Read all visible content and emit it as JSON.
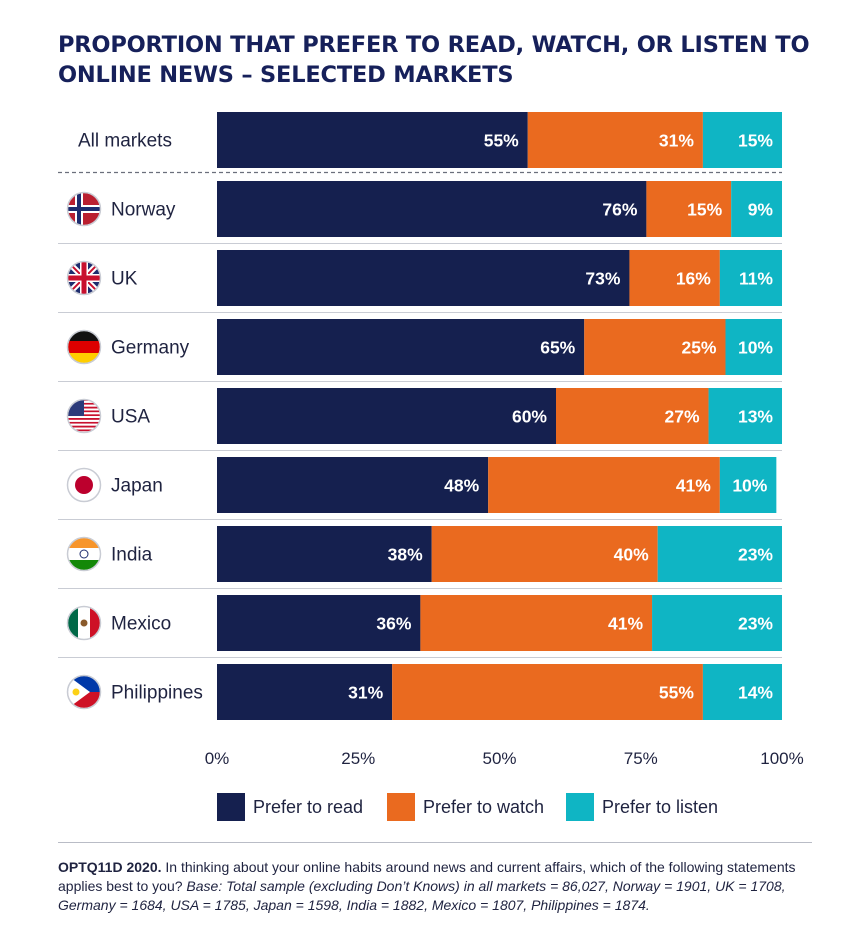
{
  "title": "PROPORTION THAT PREFER TO READ, WATCH, OR LISTEN TO ONLINE NEWS – SELECTED MARKETS",
  "colors": {
    "read": "#15204f",
    "watch": "#ea6a1f",
    "listen": "#0fb5c4",
    "text": "#1f2340"
  },
  "chart_data": {
    "type": "bar",
    "orientation": "horizontal",
    "stacked": true,
    "categories": [
      "All markets",
      "Norway",
      "UK",
      "Germany",
      "USA",
      "Japan",
      "India",
      "Mexico",
      "Philippines"
    ],
    "series": [
      {
        "name": "Prefer to read",
        "values": [
          55,
          76,
          73,
          65,
          60,
          48,
          38,
          36,
          31
        ],
        "labels": [
          "55%",
          "76%",
          "73%",
          "65%",
          "60%",
          "48%",
          "38%",
          "36%",
          "31%"
        ]
      },
      {
        "name": "Prefer to watch",
        "values": [
          31,
          15,
          16,
          25,
          27,
          41,
          40,
          41,
          55
        ],
        "labels": [
          "31%",
          "15%",
          "16%",
          "25%",
          "27%",
          "41%",
          "40%",
          "41%",
          "55%"
        ]
      },
      {
        "name": "Prefer to listen",
        "values": [
          15,
          9,
          11,
          10,
          13,
          10,
          23,
          23,
          14
        ],
        "labels": [
          "15%",
          "9%",
          "11%",
          "10%",
          "13%",
          "10%",
          "23%",
          "23%",
          "14%"
        ]
      }
    ],
    "xlim": [
      0,
      100
    ],
    "xticks": [
      "0%",
      "25%",
      "50%",
      "75%",
      "100%"
    ],
    "legend": "bottom",
    "grid": false
  },
  "footnote": {
    "code": "OPTQ11D 2020.",
    "question": " In thinking about your online habits around news and current affairs, which of the following statements applies best to you? ",
    "base": "Base: Total sample (excluding Don’t Knows) in all markets = 86,027, Norway = 1901, UK = 1708, Germany = 1684, USA = 1785, Japan = 1598, India = 1882, Mexico = 1807, Philippines = 1874."
  }
}
